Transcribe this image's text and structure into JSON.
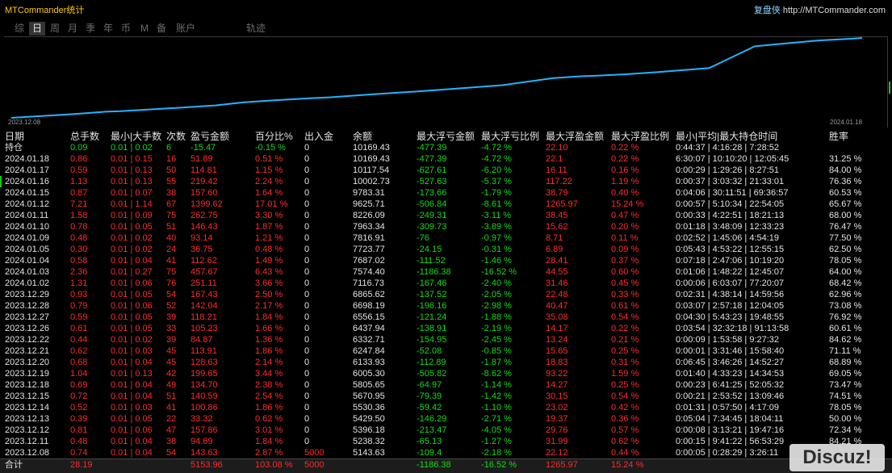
{
  "window": {
    "title": "MTCommander统计",
    "brand": "复盘侠",
    "url": "http://MTCommander.com"
  },
  "tabs": [
    {
      "label": "综"
    },
    {
      "label": "日",
      "selected": true
    },
    {
      "label": "周"
    },
    {
      "label": "月"
    },
    {
      "label": "季"
    },
    {
      "label": "年"
    },
    {
      "label": "币"
    },
    {
      "label": "M"
    },
    {
      "label": "备"
    },
    {
      "label": "账户"
    },
    {
      "label": "轨迹"
    }
  ],
  "chart": {
    "x_start_label": "2023.12.08",
    "x_end_label": "2024.01.18",
    "line_color": "#22b4ff"
  },
  "colors": {
    "background": "#000000",
    "text": "#e4e4e4",
    "title": "#ffcc00",
    "up": "#ff2b2b",
    "down": "#12dd12",
    "tab_text": "#6c6c6c"
  },
  "table": {
    "headers": [
      "日期",
      "总手数",
      "最小|大手数",
      "次数",
      "盈亏金额",
      "百分比%",
      "出入金",
      "余额",
      "最大浮亏金额",
      "最大浮亏比例",
      "最大浮盈金额",
      "最大浮盈比例",
      "最小|平均|最大持仓时间",
      "胜率"
    ],
    "position_row": [
      "持仓",
      "0.09",
      "0.01 | 0.02",
      "6",
      "-15.47",
      "-0.15 %",
      "0",
      "10169.43",
      "-477.39",
      "-4.72 %",
      "22.10",
      "0.22 %",
      "0:44:37 | 4:16:28 | 7:28:52",
      ""
    ],
    "rows": [
      [
        "2024.01.18",
        "0.86",
        "0.01 | 0.15",
        "16",
        "51.89",
        "0.51 %",
        "0",
        "10169.43",
        "-477.39",
        "-4.72 %",
        "22.1",
        "0.22 %",
        "6:30:07 | 10:10:20 | 12:05:45",
        "31.25 %"
      ],
      [
        "2024.01.17",
        "0.59",
        "0.01 | 0.13",
        "50",
        "114.81",
        "1.15 %",
        "0",
        "10117.54",
        "-627.61",
        "-6.20 %",
        "16.11",
        "0.16 %",
        "0:00:29 | 1:29:26 | 8:27:51",
        "84.00 %"
      ],
      [
        "2024.01.16",
        "1.13",
        "0.01 | 0.13",
        "55",
        "219.42",
        "2.24 %",
        "0",
        "10002.73",
        "-527.63",
        "-5.37 %",
        "117.22",
        "1.19 %",
        "0:00:37 | 3:03:32 | 21:33:01",
        "76.36 %"
      ],
      [
        "2024.01.15",
        "0.87",
        "0.01 | 0.07",
        "38",
        "157.60",
        "1.64 %",
        "0",
        "9783.31",
        "-173.66",
        "-1.79 %",
        "38.79",
        "0.40 %",
        "0:04:06 | 30:11:51 | 69:36:57",
        "60.53 %"
      ],
      [
        "2024.01.12",
        "7.21",
        "0.01 | 1.14",
        "67",
        "1399.62",
        "17.01 %",
        "0",
        "9625.71",
        "-506.84",
        "-8.61 %",
        "1265.97",
        "15.24 %",
        "0:00:57 | 5:10:34 | 22:54:05",
        "65.67 %"
      ],
      [
        "2024.01.11",
        "1.58",
        "0.01 | 0.09",
        "75",
        "262.75",
        "3.30 %",
        "0",
        "8226.09",
        "-249.31",
        "-3.11 %",
        "38.45",
        "0.47 %",
        "0:00:33 | 4:22:51 | 18:21:13",
        "68.00 %"
      ],
      [
        "2024.01.10",
        "0.78",
        "0.01 | 0.05",
        "51",
        "146.43",
        "1.87 %",
        "0",
        "7963.34",
        "-309.73",
        "-3.89 %",
        "15.62",
        "0.20 %",
        "0:01:18 | 3:48:09 | 12:33:23",
        "76.47 %"
      ],
      [
        "2024.01.09",
        "0.48",
        "0.01 | 0.02",
        "40",
        "93.14",
        "1.21 %",
        "0",
        "7816.91",
        "-76",
        "-0.97 %",
        "8.71",
        "0.11 %",
        "0:02:52 | 1:45:06 | 4:54:19",
        "77.50 %"
      ],
      [
        "2024.01.05",
        "0.30",
        "0.01 | 0.02",
        "24",
        "36.75",
        "0.48 %",
        "0",
        "7723.77",
        "-24.15",
        "-0.31 %",
        "6.89",
        "0.09 %",
        "0:05:43 | 4:53:22 | 12:55:15",
        "62.50 %"
      ],
      [
        "2024.01.04",
        "0.58",
        "0.01 | 0.04",
        "41",
        "112.62",
        "1.49 %",
        "0",
        "7687.02",
        "-111.52",
        "-1.46 %",
        "28.41",
        "0.37 %",
        "0:07:18 | 2:47:06 | 10:19:20",
        "78.05 %"
      ],
      [
        "2024.01.03",
        "2.36",
        "0.01 | 0.27",
        "75",
        "457.67",
        "6.43 %",
        "0",
        "7574.40",
        "-1186.38",
        "-16.52 %",
        "44.55",
        "0.60 %",
        "0:01:06 | 1:48:22 | 12:45:07",
        "64.00 %"
      ],
      [
        "2024.01.02",
        "1.31",
        "0.01 | 0.06",
        "76",
        "251.11",
        "3.66 %",
        "0",
        "7116.73",
        "-167.46",
        "-2.40 %",
        "31.46",
        "0.45 %",
        "0:00:06 | 6:03:07 | 77:20:07",
        "68.42 %"
      ],
      [
        "2023.12.29",
        "0.93",
        "0.01 | 0.05",
        "54",
        "167.43",
        "2.50 %",
        "0",
        "6865.62",
        "-137.52",
        "-2.05 %",
        "22.48",
        "0.33 %",
        "0:02:31 | 4:38:14 | 14:59:56",
        "62.96 %"
      ],
      [
        "2023.12.28",
        "0.79",
        "0.01 | 0.06",
        "52",
        "142.04",
        "2.17 %",
        "0",
        "6698.19",
        "-196.16",
        "-2.98 %",
        "40.47",
        "0.61 %",
        "0:03:07 | 2:57:18 | 12:04:05",
        "73.08 %"
      ],
      [
        "2023.12.27",
        "0.59",
        "0.01 | 0.05",
        "39",
        "118.21",
        "1.84 %",
        "0",
        "6556.15",
        "-121.24",
        "-1.88 %",
        "35.08",
        "0.54 %",
        "0:04:30 | 5:43:23 | 19:48:55",
        "76.92 %"
      ],
      [
        "2023.12.26",
        "0.61",
        "0.01 | 0.05",
        "33",
        "105.23",
        "1.66 %",
        "0",
        "6437.94",
        "-138.91",
        "-2.19 %",
        "14.17",
        "0.22 %",
        "0:03:54 | 32:32:18 | 91:13:58",
        "60.61 %"
      ],
      [
        "2023.12.22",
        "0.44",
        "0.01 | 0.02",
        "39",
        "84.87",
        "1.36 %",
        "0",
        "6332.71",
        "-154.95",
        "-2.45 %",
        "13.24",
        "0.21 %",
        "0:00:09 | 1:53:58 | 9:27:32",
        "84.62 %"
      ],
      [
        "2023.12.21",
        "0.62",
        "0.01 | 0.03",
        "45",
        "113.91",
        "1.86 %",
        "0",
        "6247.84",
        "-52.08",
        "-0.85 %",
        "15.65",
        "0.25 %",
        "0:00:01 | 3:31:46 | 15:58:40",
        "71.11 %"
      ],
      [
        "2023.12.20",
        "0.68",
        "0.01 | 0.04",
        "45",
        "128.63",
        "2.14 %",
        "0",
        "6133.93",
        "-112.89",
        "-1.87 %",
        "18.83",
        "0.31 %",
        "0:06:45 | 3:46:26 | 14:52:27",
        "68.89 %"
      ],
      [
        "2023.12.19",
        "1.04",
        "0.01 | 0.13",
        "42",
        "199.65",
        "3.44 %",
        "0",
        "6005.30",
        "-505.82",
        "-8.62 %",
        "93.22",
        "1.59 %",
        "0:01:40 | 4:33:23 | 14:34:53",
        "69.05 %"
      ],
      [
        "2023.12.18",
        "0.69",
        "0.01 | 0.04",
        "49",
        "134.70",
        "2.38 %",
        "0",
        "5805.65",
        "-64.97",
        "-1.14 %",
        "14.27",
        "0.25 %",
        "0:00:23 | 6:41:25 | 52:05:32",
        "73.47 %"
      ],
      [
        "2023.12.15",
        "0.72",
        "0.01 | 0.04",
        "51",
        "140.59",
        "2.54 %",
        "0",
        "5670.95",
        "-79.39",
        "-1.42 %",
        "30.15",
        "0.54 %",
        "0:00:21 | 2:53:52 | 13:09:46",
        "74.51 %"
      ],
      [
        "2023.12.14",
        "0.52",
        "0.01 | 0.03",
        "41",
        "100.86",
        "1.86 %",
        "0",
        "5530.36",
        "-59.42",
        "-1.10 %",
        "23.02",
        "0.42 %",
        "0:01:31 | 0:57:50 | 4:17:09",
        "78.05 %"
      ],
      [
        "2023.12.13",
        "0.39",
        "0.01 | 0.05",
        "22",
        "33.32",
        "0.62 %",
        "0",
        "5429.50",
        "-146.29",
        "-2.71 %",
        "19.37",
        "0.36 %",
        "0:05:04 | 7:34:45 | 18:04:11",
        "50.00 %"
      ],
      [
        "2023.12.12",
        "0.81",
        "0.01 | 0.06",
        "47",
        "157.86",
        "3.01 %",
        "0",
        "5396.18",
        "-213.47",
        "-4.05 %",
        "29.76",
        "0.57 %",
        "0:00:08 | 3:13:21 | 19:47:16",
        "72.34 %"
      ],
      [
        "2023.12.11",
        "0.48",
        "0.01 | 0.04",
        "38",
        "94.69",
        "1.84 %",
        "0",
        "5238.32",
        "-65.13",
        "-1.27 %",
        "31.99",
        "0.62 %",
        "0:00:15 | 9:41:22 | 56:53:29",
        "84.21 %"
      ],
      [
        "2023.12.08",
        "0.74",
        "0.01 | 0.04",
        "54",
        "143.63",
        "2.87 %",
        "5000",
        "5143.63",
        "-109.4",
        "-2.18 %",
        "22.12",
        "0.44 %",
        "0:00:05 | 0:28:29 | 3:26:11",
        ""
      ]
    ],
    "total_row": [
      "合计",
      "28.19",
      "",
      "",
      "5153.96",
      "103.08 %",
      "5000",
      "",
      "-1186.38",
      "-16.52 %",
      "1265.97",
      "15.24 %",
      "",
      ""
    ]
  },
  "watermark": "Discuz!"
}
